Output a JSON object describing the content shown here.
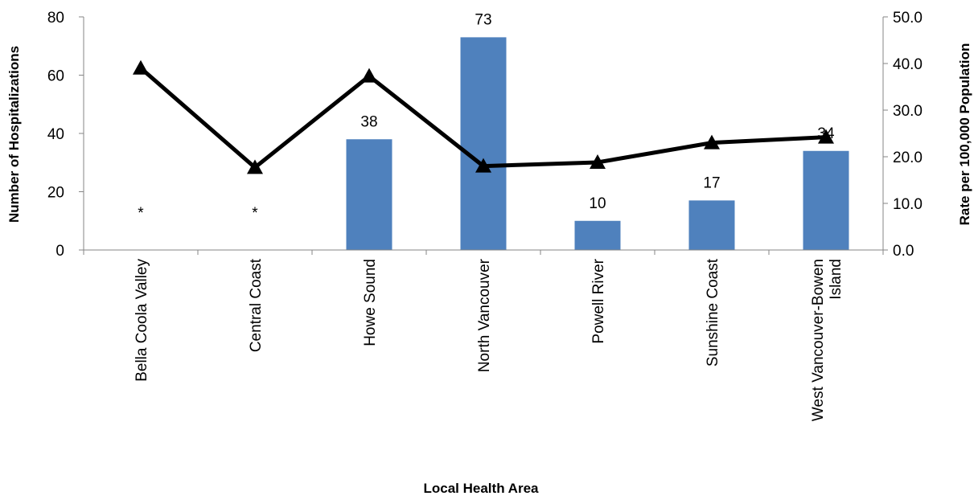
{
  "chart_data": {
    "type": "bar+line",
    "title": "",
    "xlabel": "Local Health Area",
    "ylabel_left": "Number of Hospitalizations",
    "ylabel_right": "Rate per 100,000 Population",
    "categories": [
      [
        "Bella Coola Valley"
      ],
      [
        "Central Coast"
      ],
      [
        "Howe Sound"
      ],
      [
        "North Vancouver"
      ],
      [
        "Powell River"
      ],
      [
        "Sunshine Coast"
      ],
      [
        "West Vancouver-Bowen",
        "Island"
      ]
    ],
    "bar_series": {
      "values": [
        null,
        null,
        38,
        73,
        10,
        17,
        34
      ],
      "labels": [
        "*",
        "*",
        "38",
        "73",
        "10",
        "17",
        "34"
      ],
      "color": "#4f81bd"
    },
    "line_series": {
      "values": [
        39.0,
        17.7,
        37.3,
        18.0,
        18.8,
        23.0,
        24.2
      ],
      "color": "#000000",
      "marker": "triangle"
    },
    "ylim_left": [
      0,
      80
    ],
    "yticks_left": [
      "0",
      "20",
      "40",
      "60",
      "80"
    ],
    "ylim_right": [
      0,
      50
    ],
    "yticks_right": [
      "0.0",
      "10.0",
      "20.0",
      "30.0",
      "40.0",
      "50.0"
    ],
    "grid": false,
    "legend": "none"
  }
}
